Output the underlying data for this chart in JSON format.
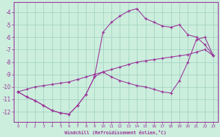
{
  "xlabel": "Windchill (Refroidissement éolien,°C)",
  "bg_color": "#cceedd",
  "grid_color": "#99ccbb",
  "line_color": "#993399",
  "ylim": [
    -12.8,
    -3.2
  ],
  "xlim": [
    -0.5,
    23.5
  ],
  "yticks": [
    -4,
    -5,
    -6,
    -7,
    -8,
    -9,
    -10,
    -11,
    -12
  ],
  "xticks": [
    0,
    1,
    2,
    3,
    4,
    5,
    6,
    7,
    8,
    9,
    10,
    11,
    12,
    13,
    14,
    15,
    16,
    17,
    18,
    19,
    20,
    21,
    22,
    23
  ],
  "curve1_x": [
    0,
    1,
    2,
    3,
    4,
    5,
    6,
    7,
    8,
    9,
    10,
    11,
    12,
    13,
    14,
    15,
    16,
    17,
    18,
    19,
    20,
    21,
    22,
    23
  ],
  "curve1_y": [
    -10.4,
    -10.8,
    -11.1,
    -11.5,
    -11.9,
    -12.1,
    -12.2,
    -11.5,
    -10.6,
    -9.2,
    -5.6,
    -4.8,
    -4.3,
    -3.9,
    -3.7,
    -4.5,
    -4.8,
    -5.1,
    -5.2,
    -5.0,
    -5.8,
    -6.0,
    -6.6,
    -7.5
  ],
  "curve2_x": [
    0,
    1,
    2,
    3,
    4,
    5,
    6,
    7,
    8,
    9,
    10,
    11,
    12,
    13,
    14,
    15,
    16,
    17,
    18,
    19,
    20,
    21,
    22,
    23
  ],
  "curve2_y": [
    -10.4,
    -10.2,
    -10.0,
    -9.9,
    -9.8,
    -9.7,
    -9.6,
    -9.4,
    -9.2,
    -9.0,
    -8.8,
    -8.6,
    -8.4,
    -8.2,
    -8.0,
    -7.9,
    -7.8,
    -7.7,
    -7.6,
    -7.5,
    -7.4,
    -7.2,
    -7.0,
    -7.5
  ],
  "curve3_x": [
    0,
    1,
    2,
    3,
    4,
    5,
    6,
    7,
    8,
    9,
    10,
    11,
    12,
    13,
    14,
    15,
    16,
    17,
    18,
    19,
    20,
    21,
    22,
    23
  ],
  "curve3_y": [
    -10.4,
    -10.8,
    -11.1,
    -11.5,
    -11.9,
    -12.1,
    -12.2,
    -11.5,
    -10.6,
    -9.2,
    -8.8,
    -9.2,
    -9.5,
    -9.7,
    -9.9,
    -10.0,
    -10.2,
    -10.4,
    -10.5,
    -9.5,
    -8.0,
    -6.2,
    -6.0,
    -7.5
  ]
}
